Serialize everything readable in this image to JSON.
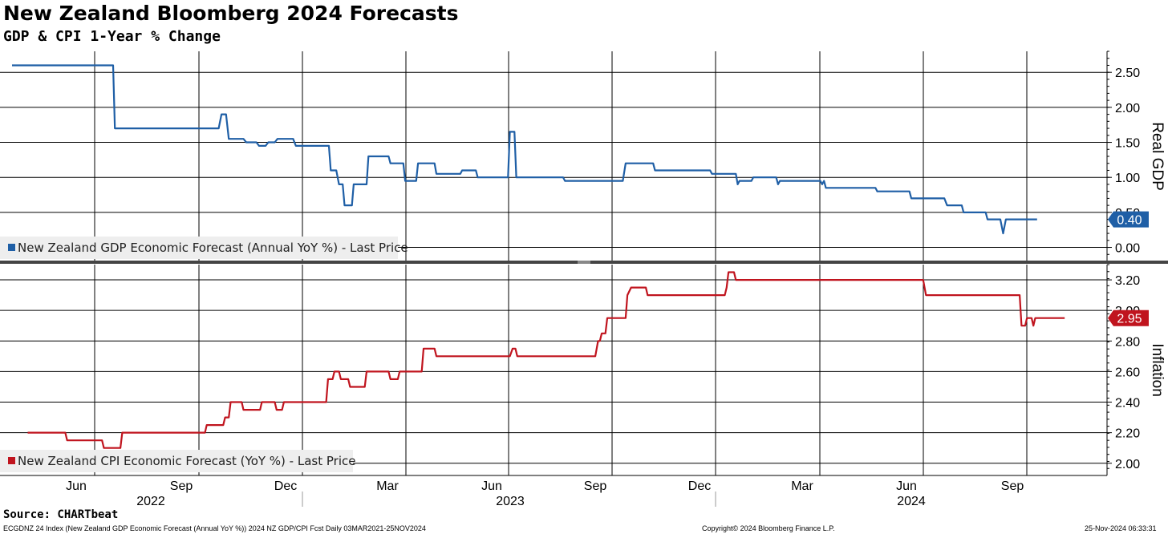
{
  "title": "New Zealand Bloomberg 2024 Forecasts",
  "subtitle": "GDP & CPI 1-Year % Change",
  "source": "Source: CHARTbeat",
  "footer_left": "ECGDNZ 24 Index (New Zealand GDP Economic Forecast (Annual YoY %)) 2024 NZ GDP/CPI Fcst  Daily 03MAR2021-25NOV2024",
  "footer_center": "Copyright© 2024 Bloomberg Finance L.P.",
  "footer_right": "25-Nov-2024 06:33:31",
  "colors": {
    "gdp": "#1f5fa6",
    "cpi": "#c0141e",
    "grid": "#000000",
    "label_bg": "#eeeeee"
  },
  "chart_data": {
    "type": "line",
    "x_axis": {
      "month_ticks": [
        "Jun",
        "Sep",
        "Dec",
        "Mar",
        "Jun",
        "Sep",
        "Dec",
        "Mar",
        "Jun",
        "Sep"
      ],
      "year_labels": [
        "2022",
        "2023",
        "2024"
      ]
    },
    "panels": [
      {
        "name": "gdp",
        "ylabel": "Real GDP",
        "ylim": [
          -0.2,
          2.8
        ],
        "yticks": [
          "2.50",
          "2.00",
          "1.50",
          "1.00",
          "0.50",
          "0.00"
        ],
        "series_name": "New Zealand GDP Economic Forecast (Annual YoY %) - Last Price",
        "last_value": "0.40",
        "points": [
          [
            0.0,
            2.6
          ],
          [
            1.1,
            2.6
          ],
          [
            1.12,
            1.7
          ],
          [
            2.25,
            1.7
          ],
          [
            2.28,
            1.9
          ],
          [
            2.33,
            1.9
          ],
          [
            2.36,
            1.55
          ],
          [
            2.52,
            1.55
          ],
          [
            2.55,
            1.5
          ],
          [
            2.66,
            1.5
          ],
          [
            2.69,
            1.45
          ],
          [
            2.76,
            1.45
          ],
          [
            2.79,
            1.5
          ],
          [
            2.86,
            1.5
          ],
          [
            2.89,
            1.55
          ],
          [
            3.06,
            1.55
          ],
          [
            3.09,
            1.45
          ],
          [
            3.45,
            1.45
          ],
          [
            3.47,
            1.1
          ],
          [
            3.53,
            1.1
          ],
          [
            3.56,
            0.9
          ],
          [
            3.6,
            0.9
          ],
          [
            3.62,
            0.6
          ],
          [
            3.7,
            0.6
          ],
          [
            3.72,
            0.9
          ],
          [
            3.86,
            0.9
          ],
          [
            3.88,
            1.3
          ],
          [
            4.1,
            1.3
          ],
          [
            4.12,
            1.2
          ],
          [
            4.26,
            1.2
          ],
          [
            4.28,
            0.95
          ],
          [
            4.4,
            0.95
          ],
          [
            4.42,
            1.2
          ],
          [
            4.6,
            1.2
          ],
          [
            4.62,
            1.05
          ],
          [
            4.88,
            1.05
          ],
          [
            4.9,
            1.1
          ],
          [
            5.05,
            1.1
          ],
          [
            5.07,
            1.0
          ],
          [
            5.4,
            1.0
          ],
          [
            5.42,
            1.65
          ],
          [
            5.47,
            1.65
          ],
          [
            5.49,
            1.0
          ],
          [
            6.0,
            1.0
          ],
          [
            6.02,
            0.95
          ],
          [
            6.65,
            0.95
          ],
          [
            6.68,
            1.2
          ],
          [
            6.98,
            1.2
          ],
          [
            7.0,
            1.1
          ],
          [
            7.6,
            1.1
          ],
          [
            7.62,
            1.05
          ],
          [
            7.88,
            1.05
          ],
          [
            7.9,
            0.9
          ],
          [
            7.92,
            0.95
          ],
          [
            8.05,
            0.95
          ],
          [
            8.07,
            1.0
          ],
          [
            8.32,
            1.0
          ],
          [
            8.34,
            0.9
          ],
          [
            8.36,
            0.95
          ],
          [
            8.8,
            0.95
          ],
          [
            8.82,
            0.9
          ],
          [
            8.84,
            0.95
          ],
          [
            8.86,
            0.85
          ],
          [
            9.4,
            0.85
          ],
          [
            9.42,
            0.8
          ],
          [
            9.77,
            0.8
          ],
          [
            9.79,
            0.7
          ],
          [
            10.15,
            0.7
          ],
          [
            10.18,
            0.6
          ],
          [
            10.34,
            0.6
          ],
          [
            10.36,
            0.5
          ],
          [
            10.6,
            0.5
          ],
          [
            10.62,
            0.4
          ],
          [
            10.76,
            0.4
          ],
          [
            10.79,
            0.2
          ],
          [
            10.82,
            0.4
          ],
          [
            11.16,
            0.4
          ]
        ]
      },
      {
        "name": "cpi",
        "ylabel": "Inflation",
        "ylim": [
          1.92,
          3.3
        ],
        "yticks": [
          "3.20",
          "3.00",
          "2.80",
          "2.60",
          "2.40",
          "2.20",
          "2.00"
        ],
        "series_name": "New Zealand CPI Economic Forecast (YoY %) - Last Price",
        "last_value": "2.95",
        "points": [
          [
            0.17,
            2.2
          ],
          [
            0.58,
            2.2
          ],
          [
            0.6,
            2.15
          ],
          [
            0.98,
            2.15
          ],
          [
            1.0,
            2.1
          ],
          [
            1.18,
            2.1
          ],
          [
            1.2,
            2.2
          ],
          [
            2.1,
            2.2
          ],
          [
            2.12,
            2.25
          ],
          [
            2.3,
            2.25
          ],
          [
            2.32,
            2.3
          ],
          [
            2.36,
            2.3
          ],
          [
            2.38,
            2.4
          ],
          [
            2.5,
            2.4
          ],
          [
            2.52,
            2.35
          ],
          [
            2.7,
            2.35
          ],
          [
            2.72,
            2.4
          ],
          [
            2.86,
            2.4
          ],
          [
            2.88,
            2.35
          ],
          [
            2.94,
            2.35
          ],
          [
            2.96,
            2.4
          ],
          [
            3.42,
            2.4
          ],
          [
            3.44,
            2.55
          ],
          [
            3.49,
            2.55
          ],
          [
            3.51,
            2.6
          ],
          [
            3.56,
            2.6
          ],
          [
            3.58,
            2.55
          ],
          [
            3.66,
            2.55
          ],
          [
            3.68,
            2.5
          ],
          [
            3.84,
            2.5
          ],
          [
            3.86,
            2.6
          ],
          [
            4.1,
            2.6
          ],
          [
            4.12,
            2.55
          ],
          [
            4.2,
            2.55
          ],
          [
            4.22,
            2.6
          ],
          [
            4.46,
            2.6
          ],
          [
            4.48,
            2.75
          ],
          [
            4.6,
            2.75
          ],
          [
            4.62,
            2.7
          ],
          [
            5.42,
            2.7
          ],
          [
            5.45,
            2.75
          ],
          [
            5.48,
            2.75
          ],
          [
            5.5,
            2.7
          ],
          [
            6.35,
            2.7
          ],
          [
            6.38,
            2.8
          ],
          [
            6.4,
            2.8
          ],
          [
            6.42,
            2.85
          ],
          [
            6.46,
            2.85
          ],
          [
            6.48,
            2.95
          ],
          [
            6.68,
            2.95
          ],
          [
            6.7,
            3.1
          ],
          [
            6.74,
            3.15
          ],
          [
            6.9,
            3.15
          ],
          [
            6.92,
            3.1
          ],
          [
            7.76,
            3.1
          ],
          [
            7.78,
            3.15
          ],
          [
            7.8,
            3.25
          ],
          [
            7.86,
            3.25
          ],
          [
            7.88,
            3.2
          ],
          [
            9.92,
            3.2
          ],
          [
            9.95,
            3.1
          ],
          [
            10.97,
            3.1
          ],
          [
            10.99,
            2.9
          ],
          [
            11.03,
            2.9
          ],
          [
            11.05,
            2.95
          ],
          [
            11.1,
            2.95
          ],
          [
            11.12,
            2.9
          ],
          [
            11.14,
            2.95
          ],
          [
            11.46,
            2.95
          ]
        ]
      }
    ]
  }
}
